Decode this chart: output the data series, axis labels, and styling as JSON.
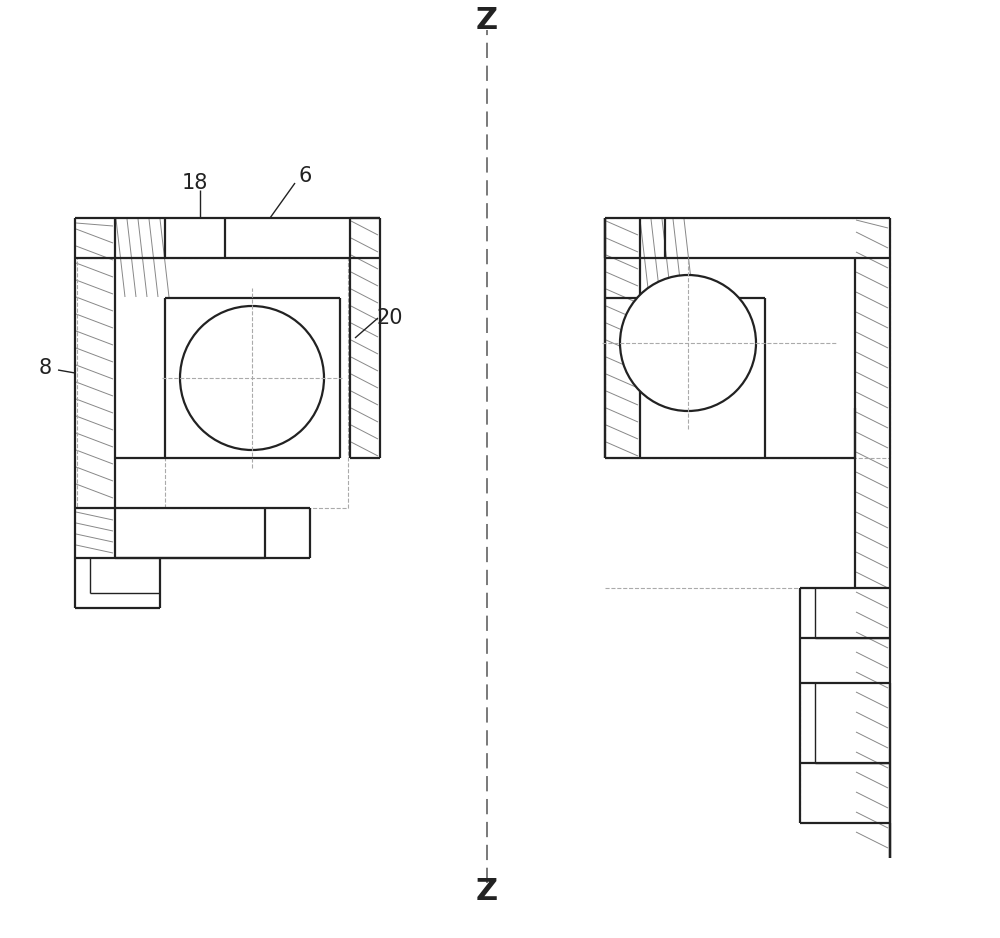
{
  "background_color": "#ffffff",
  "line_color": "#222222",
  "dashed_color": "#aaaaaa",
  "fig_width": 10.0,
  "fig_height": 9.38,
  "dpi": 100,
  "lw_thick": 1.6,
  "lw_thin": 1.0,
  "lw_dot": 0.8,
  "lw_hatch": 0.7,
  "hatch_color": "#888888",
  "label_fontsize": 15
}
